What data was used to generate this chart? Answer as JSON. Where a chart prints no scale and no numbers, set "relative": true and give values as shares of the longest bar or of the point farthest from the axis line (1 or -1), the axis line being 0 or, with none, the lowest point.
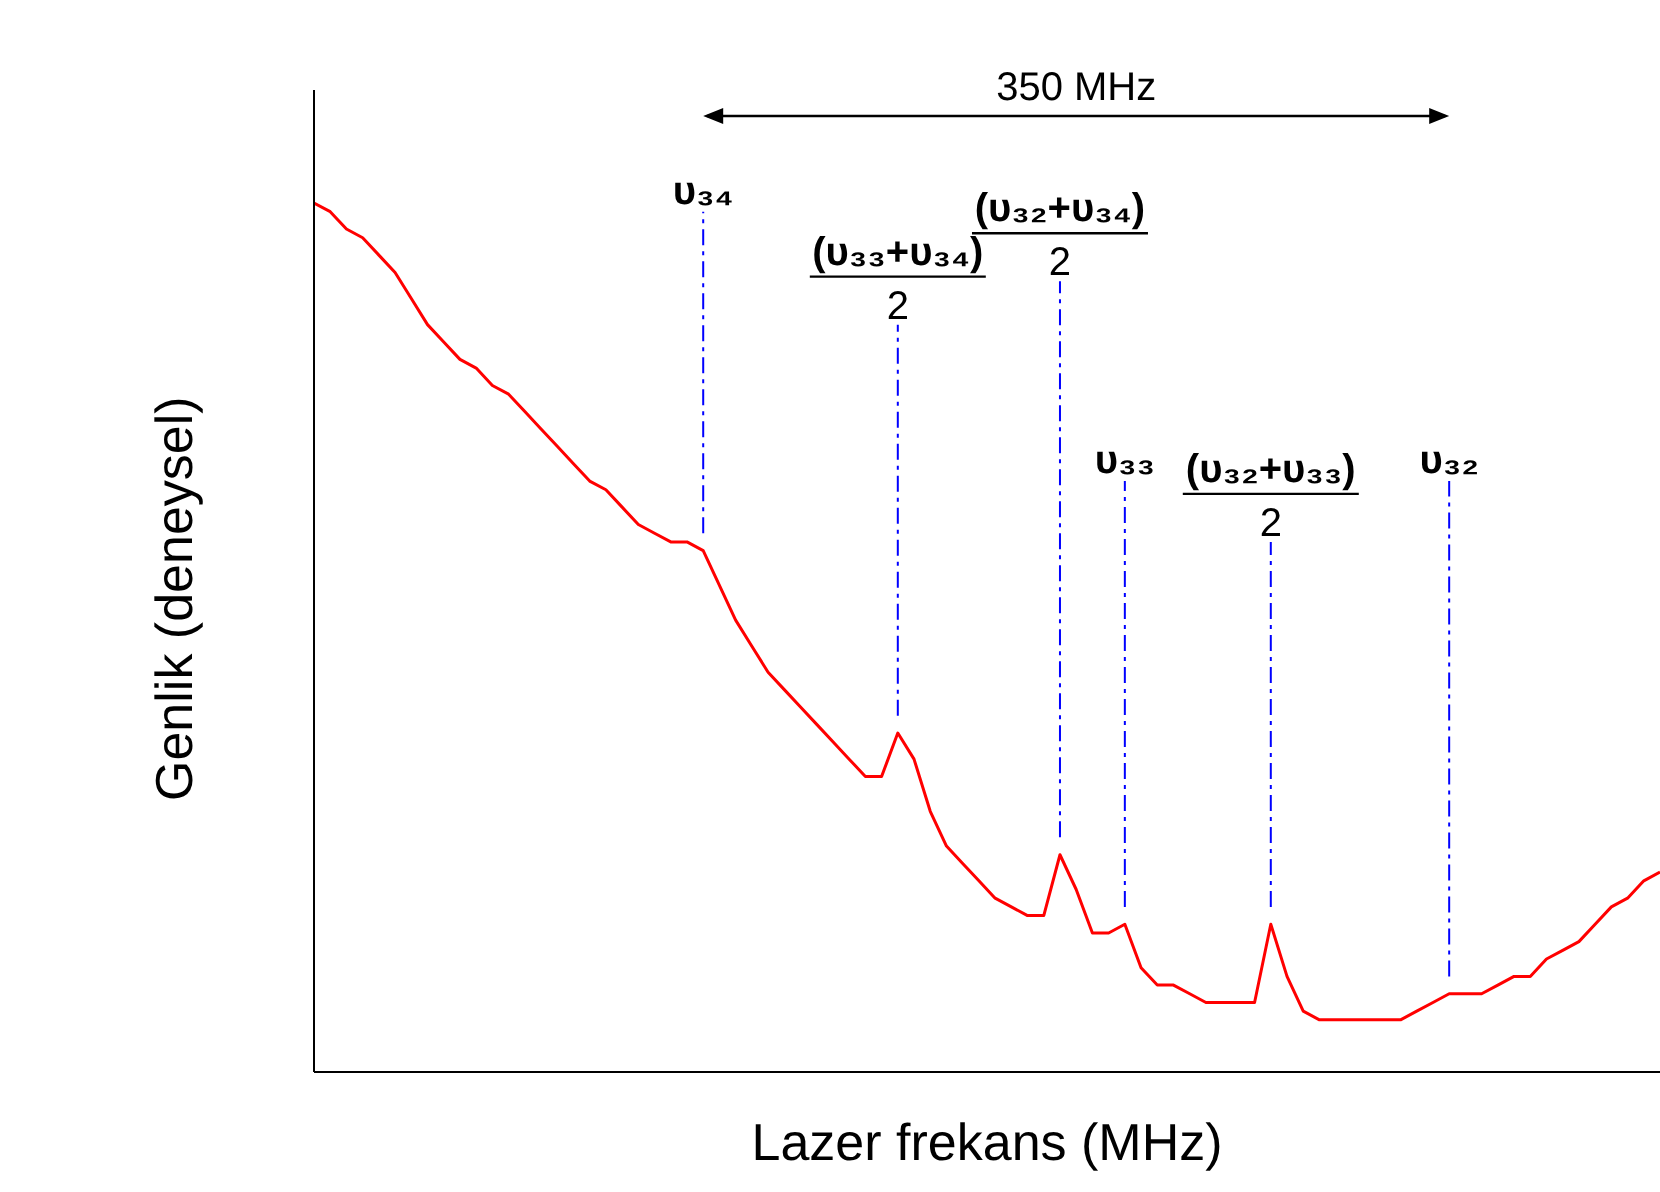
{
  "chart_data": {
    "type": "line",
    "relative": true,
    "xlabel": "Lazer frekans (MHz)",
    "ylabel": "Genlik (deneysel)",
    "categories": [
      null,
      null,
      null,
      null,
      null,
      null,
      null,
      null,
      null,
      null,
      null,
      null,
      null,
      null,
      null,
      null,
      null,
      null,
      null,
      null,
      null,
      null,
      null,
      null,
      null,
      null,
      null,
      null,
      null,
      null,
      null,
      null,
      null,
      null,
      null,
      null,
      null,
      null,
      null,
      null,
      null,
      null,
      null,
      null,
      null,
      null,
      null,
      null,
      null,
      null,
      null,
      null,
      null,
      null,
      null,
      null,
      null,
      null,
      null,
      null,
      null,
      null,
      null,
      null,
      null,
      null,
      null,
      null,
      null,
      null,
      null,
      null,
      null,
      null,
      null,
      null,
      null,
      null,
      null,
      null,
      null,
      null,
      null,
      null
    ],
    "series": [
      {
        "color": "#ff0000",
        "values": [
          1.0,
          0.99,
          0.97,
          0.96,
          0.94,
          0.92,
          0.89,
          0.86,
          0.84,
          0.82,
          0.81,
          0.79,
          0.78,
          0.76,
          0.74,
          0.72,
          0.7,
          0.68,
          0.67,
          0.65,
          0.63,
          0.62,
          0.61,
          0.61,
          0.6,
          0.56,
          0.52,
          0.49,
          0.46,
          0.44,
          0.42,
          0.4,
          0.38,
          0.36,
          0.34,
          0.34,
          0.39,
          0.36,
          0.3,
          0.26,
          0.24,
          0.22,
          0.2,
          0.19,
          0.18,
          0.18,
          0.25,
          0.21,
          0.16,
          0.16,
          0.17,
          0.12,
          0.1,
          0.1,
          0.09,
          0.08,
          0.08,
          0.08,
          0.08,
          0.17,
          0.11,
          0.07,
          0.06,
          0.06,
          0.06,
          0.06,
          0.06,
          0.06,
          0.07,
          0.08,
          0.09,
          0.09,
          0.09,
          0.1,
          0.11,
          0.11,
          0.13,
          0.14,
          0.15,
          0.17,
          0.19,
          0.2,
          0.22,
          0.23
        ]
      }
    ],
    "annotations": [
      "350 MHz",
      "υ₃₄",
      "(υ₃₃+υ₃₄)",
      "2",
      "(υ₃₂+υ₃₄)",
      "2",
      "υ₃₃",
      "(υ₃₂+υ₃₃)",
      "2",
      "υ₃₂"
    ],
    "grid": false,
    "legend": false,
    "marker": "none",
    "line_style": "solid"
  }
}
